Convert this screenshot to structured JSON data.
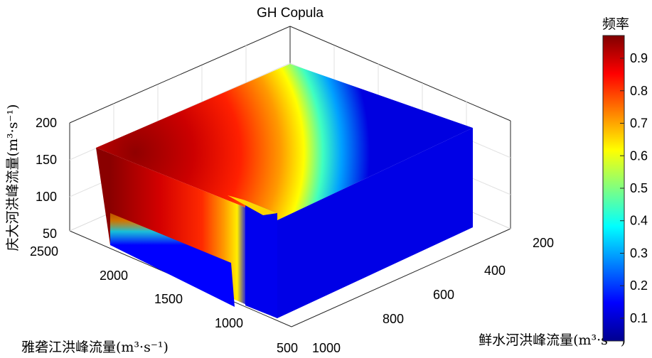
{
  "chart_data": {
    "type": "surface3d",
    "title": "GH Copula",
    "xlabel": "鲜水河洪峰流量(m³·s⁻¹)",
    "ylabel": "雅砻江洪峰流量(m³·s⁻¹)",
    "zlabel": "庆大河洪峰流量(m³·s⁻¹)",
    "colorbar_label": "频率",
    "x_ticks": [
      "200",
      "400",
      "600",
      "800",
      "1000"
    ],
    "y_ticks": [
      "500",
      "1000",
      "1500",
      "2000",
      "2500"
    ],
    "z_ticks": [
      "50",
      "100",
      "150",
      "200"
    ],
    "colorbar_ticks": [
      "0.1",
      "0.2",
      "0.3",
      "0.4",
      "0.5",
      "0.6",
      "0.7",
      "0.8",
      "0.9"
    ],
    "xlim": [
      200,
      1000
    ],
    "ylim": [
      500,
      2500
    ],
    "zlim": [
      50,
      200
    ],
    "colorbar_range": [
      0.03,
      0.97
    ],
    "colormap": "jet",
    "grid": true
  }
}
